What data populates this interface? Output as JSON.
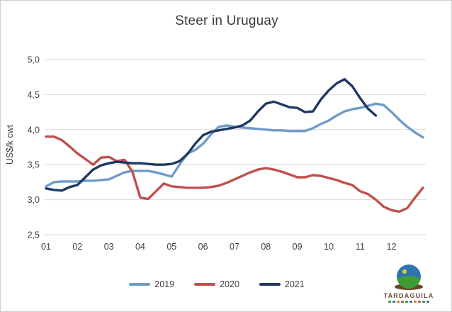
{
  "style": {
    "background": "#ffffff",
    "border_color": "#cfcfcf",
    "gridline_color": "#d9d9d9",
    "tick_color": "#404040",
    "title_color": "#3b3b3b"
  },
  "chart_data": {
    "type": "line",
    "title": "Steer in Uruguay",
    "ylabel": "US$/k cwt",
    "xlabel": "",
    "ylim": [
      2.5,
      5.0
    ],
    "ytick_values": [
      5.0,
      4.5,
      4.0,
      3.5,
      3.0,
      2.5
    ],
    "ytick_labels": [
      "5,0",
      "4,5",
      "4,0",
      "3,5",
      "3,0",
      "2,5"
    ],
    "x_tick_labels": [
      "01",
      "02",
      "03",
      "04",
      "05",
      "06",
      "07",
      "08",
      "09",
      "10",
      "11",
      "12"
    ],
    "points_per_month": 4,
    "grid": "horizontal-only",
    "legend_position": "bottom-center",
    "series": [
      {
        "name": "2019",
        "color": "#6e9bc8",
        "values": [
          3.19,
          3.25,
          3.26,
          3.26,
          3.26,
          3.27,
          3.27,
          3.28,
          3.29,
          3.34,
          3.39,
          3.41,
          3.41,
          3.41,
          3.39,
          3.36,
          3.33,
          3.5,
          3.66,
          3.71,
          3.8,
          3.93,
          4.04,
          4.06,
          4.04,
          4.03,
          4.02,
          4.01,
          4.0,
          3.99,
          3.99,
          3.98,
          3.98,
          3.98,
          4.02,
          4.08,
          4.13,
          4.2,
          4.26,
          4.29,
          4.31,
          4.34,
          4.37,
          4.35,
          4.25,
          4.14,
          4.04,
          3.96,
          3.89
        ]
      },
      {
        "name": "2020",
        "color": "#c0504d",
        "values": [
          3.9,
          3.9,
          3.85,
          3.76,
          3.66,
          3.58,
          3.5,
          3.6,
          3.61,
          3.55,
          3.57,
          3.4,
          3.03,
          3.01,
          3.12,
          3.23,
          3.19,
          3.18,
          3.17,
          3.17,
          3.17,
          3.18,
          3.2,
          3.24,
          3.29,
          3.34,
          3.39,
          3.43,
          3.45,
          3.43,
          3.4,
          3.36,
          3.32,
          3.32,
          3.35,
          3.34,
          3.31,
          3.28,
          3.24,
          3.21,
          3.12,
          3.08,
          3.0,
          2.9,
          2.85,
          2.83,
          2.88,
          3.03,
          3.17
        ]
      },
      {
        "name": "2021",
        "color": "#1f3864",
        "values": [
          3.16,
          3.14,
          3.13,
          3.18,
          3.21,
          3.32,
          3.43,
          3.49,
          3.52,
          3.54,
          3.53,
          3.52,
          3.52,
          3.51,
          3.5,
          3.5,
          3.51,
          3.55,
          3.65,
          3.8,
          3.92,
          3.97,
          3.99,
          4.01,
          4.03,
          4.06,
          4.13,
          4.26,
          4.37,
          4.4,
          4.36,
          4.32,
          4.31,
          4.25,
          4.26,
          4.43,
          4.56,
          4.66,
          4.72,
          4.62,
          4.45,
          4.3,
          4.2
        ]
      }
    ]
  },
  "logo": {
    "text": "TARDAGUILA",
    "globe_colors": {
      "sky": "#2e74b5",
      "hill": "#3f9b35",
      "sun": "#f5c518",
      "base": "#6b4423"
    },
    "sub_colors": [
      "#3f9b35",
      "#2e74b5",
      "#e07b20",
      "#c0504d",
      "#3f9b35",
      "#2e74b5",
      "#e07b20",
      "#c0504d",
      "#3f9b35",
      "#2e74b5"
    ]
  }
}
